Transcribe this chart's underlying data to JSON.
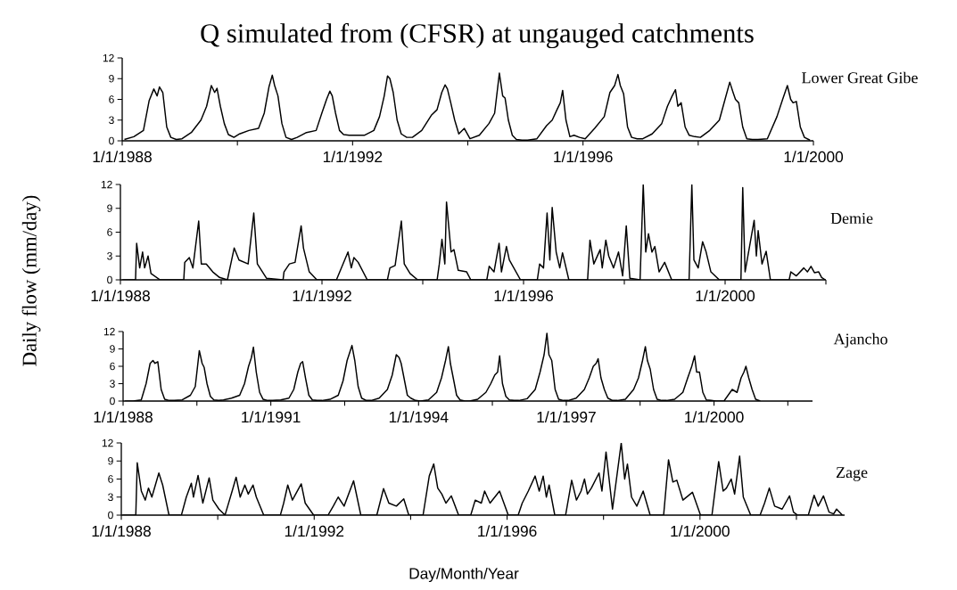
{
  "chart_data": [
    {
      "type": "line",
      "title": "Q simulated from (CFSR) at ungauged catchments",
      "annotations": [
        "Lower Great Gibe"
      ],
      "xlim": [
        "1988-01-01",
        "2000-01-01"
      ],
      "ylim": [
        0,
        12
      ],
      "yticks": [
        0,
        3,
        6,
        9,
        12
      ],
      "xticks": [
        {
          "value": "1988-01-01",
          "label": "1/1/1988"
        },
        {
          "value": "1990-01-01",
          "label": null
        },
        {
          "value": "1992-01-01",
          "label": "1/1/1992"
        },
        {
          "value": "1994-01-01",
          "label": null
        },
        {
          "value": "1996-01-01",
          "label": "1/1/1996"
        },
        {
          "value": "1998-01-01",
          "label": null
        },
        {
          "value": "2000-01-01",
          "label": "1/1/2000"
        }
      ],
      "series": [
        {
          "color": "#000000",
          "x": [
            "1988-01-15",
            "1988-03-15",
            "1988-05-15",
            "1988-06-20",
            "1988-07-20",
            "1988-08-10",
            "1988-08-25",
            "1988-09-15",
            "1988-10-10",
            "1988-11-05",
            "1988-12-10",
            "1989-01-15",
            "1989-03-15",
            "1989-05-15",
            "1989-06-20",
            "1989-07-20",
            "1989-08-10",
            "1989-08-25",
            "1989-09-15",
            "1989-10-10",
            "1989-11-05",
            "1989-12-10",
            "1990-01-15",
            "1990-03-15",
            "1990-05-15",
            "1990-06-20",
            "1990-07-20",
            "1990-08-10",
            "1990-08-25",
            "1990-09-15",
            "1990-10-10",
            "1990-11-05",
            "1990-12-10",
            "1991-01-15",
            "1991-03-15",
            "1991-05-15",
            "1991-06-20",
            "1991-07-20",
            "1991-08-10",
            "1991-08-25",
            "1991-09-15",
            "1991-10-10",
            "1991-11-05",
            "1991-12-10",
            "1992-01-15",
            "1992-03-15",
            "1992-05-15",
            "1992-06-20",
            "1992-07-20",
            "1992-08-10",
            "1992-08-25",
            "1992-09-15",
            "1992-10-10",
            "1992-11-05",
            "1992-12-10",
            "1993-01-15",
            "1993-03-15",
            "1993-05-15",
            "1993-06-20",
            "1993-07-20",
            "1993-08-10",
            "1993-08-25",
            "1993-09-15",
            "1993-10-10",
            "1993-11-05",
            "1993-12-10",
            "1994-01-15",
            "1994-03-15",
            "1994-05-15",
            "1994-06-20",
            "1994-07-20",
            "1994-08-10",
            "1994-08-25",
            "1994-09-15",
            "1994-10-10",
            "1994-11-05",
            "1994-12-10",
            "1995-01-15",
            "1995-03-15",
            "1995-05-15",
            "1995-06-20",
            "1995-07-20",
            "1995-08-10",
            "1995-08-25",
            "1995-09-15",
            "1995-10-10",
            "1995-11-05",
            "1995-12-10",
            "1996-01-15",
            "1996-03-15",
            "1996-05-15",
            "1996-06-20",
            "1996-07-20",
            "1996-08-10",
            "1996-08-25",
            "1996-09-15",
            "1996-10-10",
            "1996-11-05",
            "1996-12-10",
            "1997-01-15",
            "1997-03-15",
            "1997-05-15",
            "1997-06-20",
            "1997-07-20",
            "1997-08-10",
            "1997-08-25",
            "1997-09-15",
            "1997-10-10",
            "1997-11-05",
            "1997-12-10",
            "1998-01-15",
            "1998-03-15",
            "1998-05-15",
            "1998-06-20",
            "1998-07-20",
            "1998-08-10",
            "1998-08-25",
            "1998-09-15",
            "1998-10-10",
            "1998-11-05",
            "1998-12-10",
            "1999-01-15",
            "1999-03-15",
            "1999-05-15",
            "1999-06-20",
            "1999-07-20",
            "1999-08-10",
            "1999-08-25",
            "1999-09-15",
            "1999-10-10",
            "1999-11-05",
            "1999-12-10"
          ],
          "values": [
            0.2,
            0.6,
            1.5,
            5.8,
            7.5,
            6.5,
            7.8,
            7.0,
            2.0,
            0.5,
            0.2,
            0.3,
            1.2,
            3.0,
            5.0,
            8.0,
            7.0,
            7.6,
            5.0,
            2.5,
            0.9,
            0.5,
            1.0,
            1.5,
            1.8,
            4.0,
            7.8,
            9.5,
            8.0,
            6.5,
            2.5,
            0.5,
            0.2,
            0.5,
            1.2,
            1.5,
            4.0,
            6.0,
            7.2,
            6.5,
            4.0,
            1.5,
            0.9,
            0.8,
            0.8,
            0.8,
            1.5,
            3.5,
            6.5,
            9.4,
            9.0,
            7.0,
            3.0,
            1.0,
            0.5,
            0.5,
            1.5,
            3.7,
            4.5,
            7.0,
            8.1,
            7.5,
            5.5,
            3.0,
            1.0,
            1.8,
            0.3,
            0.8,
            2.5,
            4.0,
            9.8,
            6.5,
            6.2,
            3.0,
            0.8,
            0.2,
            0.1,
            0.1,
            0.3,
            2.2,
            3.0,
            4.5,
            5.5,
            7.3,
            3.0,
            0.6,
            0.8,
            0.5,
            0.3,
            1.8,
            3.5,
            7.0,
            8.0,
            9.6,
            8.0,
            6.8,
            2.0,
            0.5,
            0.3,
            0.3,
            1.0,
            2.5,
            5.0,
            6.5,
            7.4,
            5.0,
            5.5,
            2.0,
            0.8,
            0.6,
            0.5,
            1.5,
            3.0,
            6.0,
            8.5,
            7.0,
            6.0,
            5.5,
            2.0,
            0.3,
            0.2,
            0.2,
            0.3,
            3.5,
            6.0,
            8.0,
            6.0,
            5.5,
            5.7,
            2.0,
            0.5,
            0.1
          ]
        }
      ]
    },
    {
      "type": "line",
      "ylabel": "Daily flow (mm/day)",
      "annotations": [
        "Demie"
      ],
      "xlim": [
        "1988-01-01",
        "2002-01-01"
      ],
      "ylim": [
        0,
        12
      ],
      "yticks": [
        0,
        3,
        6,
        9,
        12
      ],
      "xticks": [
        {
          "value": "1988-01-01",
          "label": "1/1/1988"
        },
        {
          "value": "1990-01-01",
          "label": null
        },
        {
          "value": "1992-01-01",
          "label": "1/1/1992"
        },
        {
          "value": "1994-01-01",
          "label": null
        },
        {
          "value": "1996-01-01",
          "label": "1/1/1996"
        },
        {
          "value": "1998-01-01",
          "label": null
        },
        {
          "value": "2000-01-01",
          "label": "1/1/2000"
        },
        {
          "value": "2002-01-01",
          "label": null
        }
      ],
      "series": [
        {
          "color": "#000000",
          "x": [
            "1988-01-15",
            "1988-04-20",
            "1988-04-28",
            "1988-05-20",
            "1988-06-10",
            "1988-06-25",
            "1988-07-20",
            "1988-08-10",
            "1988-10-15",
            "1989-04-05",
            "1989-04-12",
            "1989-05-15",
            "1989-06-10",
            "1989-07-22",
            "1989-08-10",
            "1989-09-15",
            "1989-11-01",
            "1989-12-20",
            "1990-02-15",
            "1990-04-05",
            "1990-05-10",
            "1990-07-15",
            "1990-08-25",
            "1990-09-20",
            "1990-11-25",
            "1991-03-25",
            "1991-04-01",
            "1991-05-10",
            "1991-06-20",
            "1991-08-03",
            "1991-08-20",
            "1991-10-01",
            "1991-11-25",
            "1992-04-15",
            "1992-07-08",
            "1992-08-01",
            "1992-08-20",
            "1992-09-20",
            "1992-11-25",
            "1993-04-20",
            "1993-05-08",
            "1993-06-15",
            "1993-07-30",
            "1993-08-20",
            "1993-10-01",
            "1993-11-25",
            "1994-04-15",
            "1994-05-01",
            "1994-05-20",
            "1994-06-10",
            "1994-06-22",
            "1994-07-25",
            "1994-08-15",
            "1994-09-15",
            "1994-11-15",
            "1994-12-15",
            "1995-04-10",
            "1995-04-27",
            "1995-06-01",
            "1995-07-08",
            "1995-07-25",
            "1995-08-30",
            "1995-09-20",
            "1995-12-10",
            "1996-04-10",
            "1996-04-27",
            "1996-05-25",
            "1996-06-20",
            "1996-07-10",
            "1996-07-27",
            "1996-08-25",
            "1996-09-20",
            "1996-10-10",
            "1996-11-25",
            "1997-04-10",
            "1997-04-27",
            "1997-05-25",
            "1997-07-10",
            "1997-07-25",
            "1997-08-20",
            "1997-09-10",
            "1997-10-15",
            "1997-11-20",
            "1997-12-20",
            "1998-01-15",
            "1998-02-10",
            "1998-04-25",
            "1998-05-18",
            "1998-06-05",
            "1998-06-25",
            "1998-07-20",
            "1998-08-10",
            "1998-09-10",
            "1998-10-20",
            "1998-12-10",
            "1999-04-15",
            "1999-05-05",
            "1999-05-20",
            "1999-06-20",
            "1999-07-22",
            "1999-08-15",
            "1999-09-20",
            "1999-11-20",
            "2000-04-25",
            "2000-05-08",
            "2000-05-25",
            "2000-07-30",
            "2000-08-15",
            "2000-08-28",
            "2000-09-25",
            "2000-10-25",
            "2000-11-25",
            "2001-04-10",
            "2001-04-22",
            "2001-06-01",
            "2001-07-25",
            "2001-08-20",
            "2001-09-15",
            "2001-10-10",
            "2001-11-10",
            "2001-12-01",
            "2001-12-28"
          ],
          "values": [
            0,
            0,
            4.6,
            1.5,
            3.5,
            1.5,
            3.0,
            0.8,
            0,
            0,
            2.2,
            2.8,
            1.5,
            7.4,
            2.0,
            2.0,
            1.0,
            0.3,
            0,
            4.0,
            2.5,
            2.0,
            8.4,
            2.0,
            0.2,
            0,
            1.0,
            2.0,
            2.2,
            6.8,
            4.0,
            1.0,
            0,
            0,
            3.5,
            1.5,
            2.8,
            2.2,
            0,
            0,
            1.5,
            1.8,
            7.4,
            2.0,
            0.8,
            0,
            0,
            2.0,
            5.1,
            2.0,
            9.8,
            3.5,
            3.8,
            1.2,
            1.0,
            0,
            0,
            1.7,
            1.0,
            4.6,
            1.0,
            4.2,
            2.5,
            0,
            0,
            2.0,
            1.5,
            8.4,
            2.5,
            9.1,
            3.5,
            1.5,
            3.4,
            0,
            0,
            5.0,
            2.0,
            3.8,
            1.5,
            5.0,
            3.0,
            1.5,
            3.5,
            0.5,
            6.8,
            0.2,
            0,
            12,
            3.5,
            5.8,
            3.5,
            4.2,
            1.0,
            2.2,
            0,
            0,
            12,
            2.5,
            1.5,
            4.8,
            3.6,
            1.0,
            0,
            0,
            11.6,
            1.0,
            7.5,
            3.0,
            6.2,
            2.0,
            3.6,
            0,
            0,
            1.0,
            0.5,
            1.5,
            1.0,
            1.7,
            0.9,
            1.0,
            0.3,
            0
          ]
        }
      ]
    },
    {
      "type": "line",
      "annotations": [
        "Ajancho"
      ],
      "xlim": [
        "1988-01-01",
        "2002-01-01"
      ],
      "ylim": [
        0,
        12
      ],
      "yticks": [
        0,
        3,
        6,
        9,
        12
      ],
      "xticks": [
        {
          "value": "1988-01-01",
          "label": "1/1/1988"
        },
        {
          "value": "1989-07-02",
          "label": null
        },
        {
          "value": "1991-01-01",
          "label": "1/1/1991"
        },
        {
          "value": "1992-07-02",
          "label": null
        },
        {
          "value": "1994-01-01",
          "label": "1/1/1994"
        },
        {
          "value": "1995-07-02",
          "label": null
        },
        {
          "value": "1997-01-01",
          "label": "1/1/1997"
        },
        {
          "value": "1998-07-02",
          "label": null
        },
        {
          "value": "2000-01-01",
          "label": "1/1/2000"
        },
        {
          "value": "2001-07-02",
          "label": null
        }
      ],
      "series": [
        {
          "color": "#000000",
          "x": [
            "1988-01-15",
            "1988-03-15",
            "1988-05-15",
            "1988-06-20",
            "1988-07-20",
            "1988-08-10",
            "1988-08-25",
            "1988-09-15",
            "1988-10-10",
            "1988-11-05",
            "1988-12-10",
            "1989-01-15",
            "1989-03-15",
            "1989-05-15",
            "1989-06-20",
            "1989-07-20",
            "1989-08-10",
            "1989-08-25",
            "1989-09-15",
            "1989-10-10",
            "1989-11-05",
            "1989-12-10",
            "1990-01-15",
            "1990-03-15",
            "1990-05-15",
            "1990-06-20",
            "1990-07-20",
            "1990-08-10",
            "1990-08-25",
            "1990-09-15",
            "1990-10-10",
            "1990-11-05",
            "1990-12-10",
            "1991-01-15",
            "1991-03-15",
            "1991-05-15",
            "1991-06-20",
            "1991-07-20",
            "1991-08-10",
            "1991-08-25",
            "1991-09-15",
            "1991-10-10",
            "1991-11-05",
            "1991-12-10",
            "1992-01-15",
            "1992-03-15",
            "1992-05-15",
            "1992-06-20",
            "1992-07-20",
            "1992-08-10",
            "1992-08-25",
            "1992-09-15",
            "1992-10-10",
            "1992-11-05",
            "1992-12-10",
            "1993-01-15",
            "1993-03-15",
            "1993-05-15",
            "1993-06-20",
            "1993-07-20",
            "1993-08-10",
            "1993-08-25",
            "1993-09-15",
            "1993-10-10",
            "1993-11-05",
            "1993-12-10",
            "1994-01-15",
            "1994-03-15",
            "1994-05-15",
            "1994-06-20",
            "1994-07-20",
            "1994-08-10",
            "1994-08-25",
            "1994-09-15",
            "1994-10-10",
            "1994-11-05",
            "1994-12-10",
            "1995-01-15",
            "1995-03-15",
            "1995-05-15",
            "1995-06-20",
            "1995-07-20",
            "1995-08-10",
            "1995-08-25",
            "1995-09-15",
            "1995-10-10",
            "1995-11-05",
            "1995-12-10",
            "1996-01-15",
            "1996-03-15",
            "1996-05-15",
            "1996-06-20",
            "1996-07-20",
            "1996-08-10",
            "1996-08-25",
            "1996-09-15",
            "1996-10-10",
            "1996-11-05",
            "1996-12-10",
            "1997-01-15",
            "1997-03-15",
            "1997-05-15",
            "1997-06-20",
            "1997-07-20",
            "1997-08-10",
            "1997-08-25",
            "1997-09-15",
            "1997-10-10",
            "1997-11-05",
            "1997-12-10",
            "1998-01-15",
            "1998-03-15",
            "1998-05-15",
            "1998-06-20",
            "1998-07-20",
            "1998-08-10",
            "1998-08-25",
            "1998-09-15",
            "1998-10-10",
            "1998-11-05",
            "1998-12-10",
            "1999-01-15",
            "1999-03-15",
            "1999-05-15",
            "1999-06-20",
            "1999-07-20",
            "1999-08-10",
            "1999-08-25",
            "1999-09-15",
            "1999-10-10",
            "1999-11-05",
            "1999-12-10",
            "2000-01-15",
            "2000-03-15",
            "2000-05-15",
            "2000-06-20",
            "2000-07-20",
            "2000-08-10",
            "2000-08-25",
            "2000-09-15",
            "2000-10-10",
            "2000-11-05",
            "2000-12-10"
          ],
          "values": [
            0,
            0,
            0.2,
            3,
            6.5,
            7.0,
            6.5,
            6.8,
            2,
            0.3,
            0.1,
            0.1,
            0.2,
            1,
            2.5,
            8.7,
            6.5,
            5.8,
            3,
            0.8,
            0.2,
            0.1,
            0.2,
            0.5,
            1,
            3,
            6,
            7.5,
            9.3,
            5,
            1.5,
            0.3,
            0.1,
            0.1,
            0.2,
            0.5,
            2,
            5,
            6.5,
            6.8,
            4,
            1,
            0.2,
            0.1,
            0.1,
            0.3,
            1,
            3.5,
            7,
            8.5,
            9.6,
            7,
            2.5,
            0.5,
            0.1,
            0.1,
            0.5,
            2,
            4.5,
            8,
            7.5,
            6.5,
            4,
            1,
            0.5,
            0.1,
            0,
            0.2,
            1.5,
            4,
            7,
            9.4,
            6.5,
            4,
            1,
            0.2,
            0,
            0,
            0.3,
            1.5,
            3,
            4.5,
            5,
            7.8,
            3,
            0.8,
            0.2,
            0.1,
            0.1,
            0.4,
            2,
            5,
            8,
            11.7,
            8,
            7,
            2,
            0.3,
            0.1,
            0.1,
            0.5,
            2,
            4,
            6,
            6.5,
            7.3,
            4,
            2,
            0.5,
            0.1,
            0.1,
            0.3,
            2,
            4,
            7,
            9.4,
            7,
            5.5,
            2,
            0.3,
            0.1,
            0.1,
            0.3,
            1.5,
            4,
            6,
            7.8,
            5,
            5,
            1.5,
            0.2,
            0.1,
            0,
            0,
            2.0,
            1.5,
            4,
            5,
            6,
            4,
            2,
            0.3,
            0
          ]
        }
      ]
    },
    {
      "type": "line",
      "xlabel": "Day/Month/Year",
      "annotations": [
        "Zage"
      ],
      "xlim": [
        "1988-01-01",
        "2003-01-01"
      ],
      "ylim": [
        0,
        12
      ],
      "yticks": [
        0,
        3,
        6,
        9,
        12
      ],
      "xticks": [
        {
          "value": "1988-01-01",
          "label": "1/1/1988"
        },
        {
          "value": "1990-01-01",
          "label": null
        },
        {
          "value": "1992-01-01",
          "label": "1/1/1992"
        },
        {
          "value": "1994-01-01",
          "label": null
        },
        {
          "value": "1996-01-01",
          "label": "1/1/1996"
        },
        {
          "value": "1998-01-01",
          "label": null
        },
        {
          "value": "2000-01-01",
          "label": "1/1/2000"
        },
        {
          "value": "2002-01-01",
          "label": null
        }
      ],
      "series": [
        {
          "color": "#000000",
          "x": [
            "1988-01-10",
            "1988-04-20",
            "1988-05-01",
            "1988-06-01",
            "1988-07-01",
            "1988-07-25",
            "1988-08-20",
            "1988-10-12",
            "1988-11-10",
            "1988-12-28",
            "1989-04-01",
            "1989-05-08",
            "1989-06-15",
            "1989-07-01",
            "1989-08-05",
            "1989-09-10",
            "1989-10-28",
            "1989-11-25",
            "1990-01-10",
            "1990-02-25",
            "1990-04-20",
            "1990-05-20",
            "1990-06-20",
            "1990-07-25",
            "1990-08-20",
            "1990-09-25",
            "1990-10-20",
            "1990-12-15",
            "1991-04-20",
            "1991-05-15",
            "1991-06-15",
            "1991-07-20",
            "1991-09-25",
            "1991-10-25",
            "1991-12-28",
            "1992-04-15",
            "1992-05-25",
            "1992-07-01",
            "1992-08-15",
            "1992-10-26",
            "1992-12-20",
            "1993-04-20",
            "1993-06-10",
            "1993-07-20",
            "1993-09-15",
            "1993-11-10",
            "1993-12-18",
            "1994-04-05",
            "1994-05-22",
            "1994-06-25",
            "1994-07-25",
            "1994-08-25",
            "1994-09-25",
            "1994-11-05",
            "1994-12-30",
            "1995-04-01",
            "1995-05-05",
            "1995-06-20",
            "1995-07-15",
            "1995-08-25",
            "1995-11-05",
            "1996-01-10",
            "1996-03-25",
            "1996-04-25",
            "1996-06-10",
            "1996-08-01",
            "1996-09-01",
            "1996-10-01",
            "1996-10-25",
            "1996-11-15",
            "1996-12-28",
            "1997-03-20",
            "1997-05-05",
            "1997-06-10",
            "1997-07-15",
            "1997-08-10",
            "1997-09-01",
            "1997-10-01",
            "1997-11-28",
            "1997-12-20",
            "1998-01-20",
            "1998-03-10",
            "1998-05-15",
            "1998-06-10",
            "1998-07-01",
            "1998-08-01",
            "1998-09-10",
            "1998-10-28",
            "1998-12-20",
            "1999-04-01",
            "1999-05-08",
            "1999-06-10",
            "1999-07-10",
            "1999-08-25",
            "1999-11-05",
            "2000-01-05",
            "2000-04-01",
            "2000-05-22",
            "2000-06-25",
            "2000-07-20",
            "2000-08-25",
            "2000-09-20",
            "2000-10-28",
            "2000-11-25",
            "2001-01-20",
            "2001-04-01",
            "2001-05-05",
            "2001-06-10",
            "2001-07-20",
            "2001-09-15",
            "2001-11-10",
            "2001-12-10",
            "2002-01-10",
            "2002-04-01",
            "2002-05-15",
            "2002-06-15",
            "2002-07-25",
            "2002-09-05",
            "2002-10-10",
            "2002-11-01",
            "2002-12-15"
          ],
          "values": [
            0,
            0,
            8.7,
            4.0,
            2.5,
            4.5,
            3.0,
            7.0,
            5.0,
            0,
            0,
            3.0,
            5.3,
            3.0,
            6.6,
            2.0,
            6.2,
            2.5,
            1.0,
            0,
            4.0,
            6.3,
            3.0,
            5.0,
            3.5,
            5.0,
            3.0,
            0,
            0,
            2.0,
            5.0,
            2.5,
            5.2,
            2.0,
            0,
            0,
            1.5,
            3.0,
            1.5,
            5.7,
            0,
            0,
            4.4,
            2.0,
            1.5,
            2.7,
            0,
            0,
            6.5,
            8.5,
            4.5,
            3.5,
            2.0,
            3.2,
            0,
            0,
            2.5,
            2.0,
            4.0,
            2.0,
            4.0,
            0,
            0,
            2.0,
            4.0,
            6.5,
            4.0,
            6.5,
            3.0,
            5.0,
            0,
            0,
            5.8,
            2.5,
            4.0,
            6.0,
            3.5,
            4.5,
            7.0,
            4.0,
            10.5,
            1.0,
            12,
            6.0,
            8.5,
            3.0,
            1.5,
            4.0,
            0,
            0,
            9.2,
            5.5,
            5.8,
            2.5,
            3.8,
            0,
            0,
            8.9,
            4.0,
            4.5,
            6.0,
            3.5,
            9.8,
            3.0,
            0,
            0,
            2.0,
            4.5,
            1.5,
            1.0,
            3.2,
            0.5,
            0,
            0,
            3.3,
            1.5,
            3.2,
            0.5,
            0.2,
            1.0,
            0
          ]
        }
      ]
    }
  ]
}
